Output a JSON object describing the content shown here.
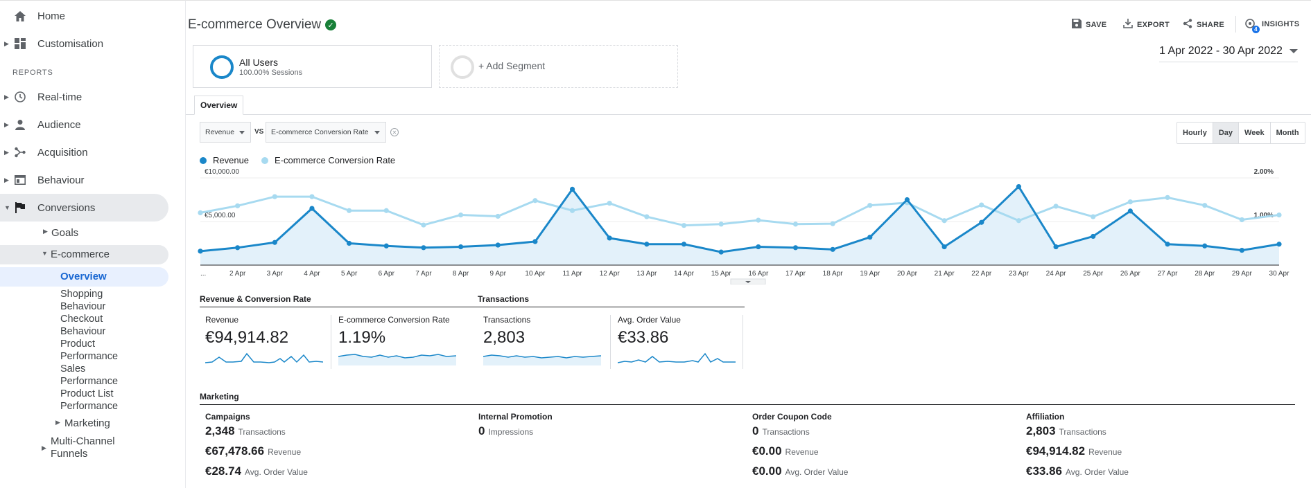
{
  "sidebar": {
    "home": "Home",
    "customisation": "Customisation",
    "reports_header": "REPORTS",
    "realtime": "Real-time",
    "audience": "Audience",
    "acquisition": "Acquisition",
    "behaviour": "Behaviour",
    "conversions": "Conversions",
    "goals": "Goals",
    "ecommerce": "E-commerce",
    "overview": "Overview",
    "ecom_items": [
      "Shopping",
      "Behaviour",
      "Checkout",
      "Behaviour",
      "Product",
      "Performance",
      "Sales",
      "Performance",
      "Product List",
      "Performance"
    ],
    "marketing": "Marketing",
    "multichannel_1": "Multi-Channel",
    "multichannel_2": "Funnels"
  },
  "header": {
    "title": "E-commerce Overview",
    "save": "SAVE",
    "export": "EXPORT",
    "share": "SHARE",
    "insights": "INSIGHTS",
    "insights_badge": "4"
  },
  "segments": {
    "all_users": "All Users",
    "all_users_sub": "100.00% Sessions",
    "add": "+ Add Segment"
  },
  "date_range": "1 Apr 2022 - 30 Apr 2022",
  "tab": "Overview",
  "controls": {
    "metric1": "Revenue",
    "vs": "VS",
    "metric2": "E-commerce Conversion Rate",
    "granularity": [
      "Hourly",
      "Day",
      "Week",
      "Month"
    ],
    "granularity_selected": "Day"
  },
  "legend": {
    "revenue": "Revenue",
    "conversion": "E-commerce Conversion Rate"
  },
  "colors": {
    "revenue": "#1a87c9",
    "conversion": "#a7daf0",
    "area": "#e3f1fa"
  },
  "chart_data": {
    "type": "line",
    "x": [
      "...",
      "2 Apr",
      "3 Apr",
      "4 Apr",
      "5 Apr",
      "6 Apr",
      "7 Apr",
      "8 Apr",
      "9 Apr",
      "10 Apr",
      "11 Apr",
      "12 Apr",
      "13 Apr",
      "14 Apr",
      "15 Apr",
      "16 Apr",
      "17 Apr",
      "18 Apr",
      "19 Apr",
      "20 Apr",
      "21 Apr",
      "22 Apr",
      "23 Apr",
      "24 Apr",
      "25 Apr",
      "26 Apr",
      "27 Apr",
      "28 Apr",
      "29 Apr",
      "30 Apr"
    ],
    "y_left_ticks": [
      "€10,000.00",
      "€5,000.00"
    ],
    "y_right_ticks": [
      "2.00%",
      "1.00%"
    ],
    "y_left_range": [
      0,
      10000
    ],
    "y_right_range": [
      0,
      2
    ],
    "series": [
      {
        "name": "Revenue",
        "axis": "left",
        "values": [
          1600,
          2000,
          2600,
          6500,
          2500,
          2200,
          2000,
          2100,
          2300,
          2700,
          8700,
          3100,
          2400,
          2400,
          1500,
          2100,
          2000,
          1800,
          3200,
          7500,
          2100,
          4900,
          9000,
          2100,
          3300,
          6200,
          2400,
          2200,
          1700,
          2400
        ]
      },
      {
        "name": "E-commerce Conversion Rate",
        "axis": "right",
        "values": [
          1.2,
          1.36,
          1.57,
          1.57,
          1.25,
          1.25,
          0.92,
          1.15,
          1.12,
          1.48,
          1.25,
          1.42,
          1.11,
          0.91,
          0.94,
          1.03,
          0.94,
          0.95,
          1.37,
          1.43,
          1.02,
          1.38,
          1.02,
          1.35,
          1.11,
          1.45,
          1.55,
          1.37,
          1.04,
          1.15
        ]
      }
    ]
  },
  "scorecards": {
    "group1_title": "Revenue & Conversion Rate",
    "group2_title": "Transactions",
    "revenue_label": "Revenue",
    "revenue_value": "€94,914.82",
    "conv_label": "E-commerce Conversion Rate",
    "conv_value": "1.19%",
    "tx_label": "Transactions",
    "tx_value": "2,803",
    "aov_label": "Avg. Order Value",
    "aov_value": "€33.86"
  },
  "marketing": {
    "title": "Marketing",
    "campaigns": {
      "title": "Campaigns",
      "tx": "2,348",
      "tx_unit": "Transactions",
      "rev": "€67,478.66",
      "rev_unit": "Revenue",
      "aov": "€28.74",
      "aov_unit": "Avg. Order Value"
    },
    "internal": {
      "title": "Internal Promotion",
      "imp": "0",
      "imp_unit": "Impressions"
    },
    "coupon": {
      "title": "Order Coupon Code",
      "tx": "0",
      "tx_unit": "Transactions",
      "rev": "€0.00",
      "rev_unit": "Revenue",
      "aov": "€0.00",
      "aov_unit": "Avg. Order Value"
    },
    "affiliation": {
      "title": "Affiliation",
      "tx": "2,803",
      "tx_unit": "Transactions",
      "rev": "€94,914.82",
      "rev_unit": "Revenue",
      "aov": "€33.86",
      "aov_unit": "Avg. Order Value"
    }
  }
}
